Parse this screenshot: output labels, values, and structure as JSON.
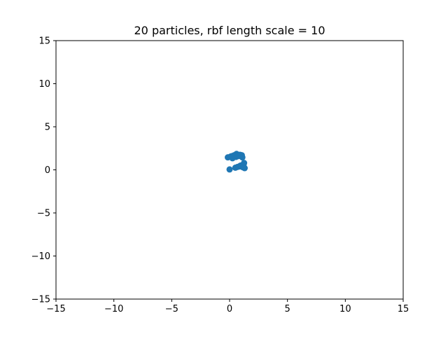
{
  "chart_data": {
    "type": "scatter",
    "title": "20 particles, rbf length scale = 10",
    "xlabel": "",
    "ylabel": "",
    "xlim": [
      -15,
      15
    ],
    "ylim": [
      -15,
      15
    ],
    "xticks": [
      -15,
      -10,
      -5,
      0,
      5,
      10,
      15
    ],
    "yticks": [
      -15,
      -10,
      -5,
      0,
      5,
      10,
      15
    ],
    "xtick_labels": [
      "−15",
      "−10",
      "−5",
      "0",
      "5",
      "10",
      "15"
    ],
    "ytick_labels": [
      "−15",
      "−10",
      "−5",
      "0",
      "5",
      "10",
      "15"
    ],
    "grid": false,
    "legend": "none",
    "marker_color": "#1f77b4",
    "series": [
      {
        "x": [
          -0.15,
          0.1,
          0.25,
          0.4,
          0.6,
          0.75,
          0.9,
          1.05,
          1.1,
          0.95,
          1.25,
          1.2,
          1.15,
          0.9,
          0.7,
          0.5,
          0.0,
          1.3,
          0.55,
          0.2
        ],
        "y": [
          1.45,
          1.55,
          1.35,
          1.7,
          1.85,
          1.6,
          1.75,
          1.7,
          1.45,
          0.5,
          0.8,
          0.55,
          0.3,
          0.4,
          0.35,
          0.25,
          0.05,
          0.2,
          1.5,
          1.6
        ]
      }
    ]
  }
}
